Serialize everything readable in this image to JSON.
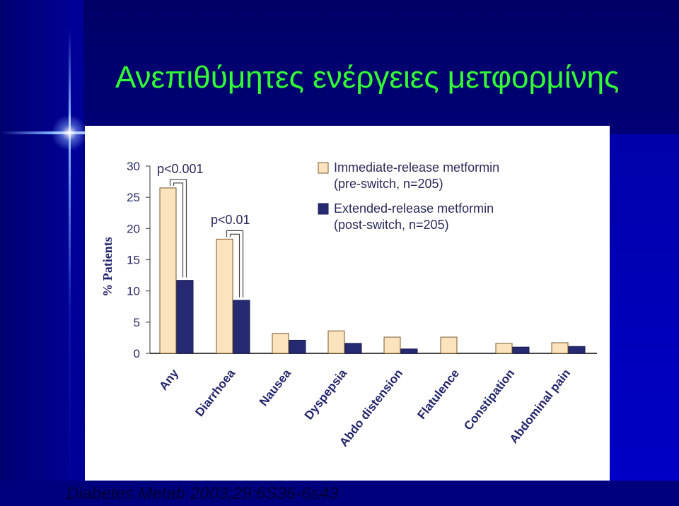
{
  "slide": {
    "title": "Ανεπιθύμητες ενέργειες μετφορμίνης",
    "citation": "Diabetes Metab 2003;29:6S36-6s43"
  },
  "colors": {
    "title": "#33ff33",
    "immediate_release": "#fbe3bd",
    "extended_release": "#262a73",
    "citation": "#000033"
  },
  "chart_data": {
    "type": "bar",
    "ylabel": "% Patients",
    "ylim": [
      0,
      30
    ],
    "yticks": [
      0,
      5,
      10,
      15,
      20,
      25,
      30
    ],
    "categories": [
      "Any",
      "Diarrhoea",
      "Nausea",
      "Dyspepsia",
      "Abdo distension",
      "Flatulence",
      "Constipation",
      "Abdominal pain"
    ],
    "series": [
      {
        "name": "Immediate-release metformin (pre-switch, n=205)",
        "values": [
          26.5,
          18.3,
          3.2,
          3.6,
          2.6,
          2.6,
          1.6,
          1.7
        ]
      },
      {
        "name": "Extended-release metformin (post-switch, n=205)",
        "values": [
          11.7,
          8.5,
          2.1,
          1.6,
          0.7,
          0,
          1.0,
          1.1
        ]
      }
    ],
    "annotations": [
      "p<0.001",
      "p<0.01"
    ],
    "legend_position": "top-right",
    "grid": false
  }
}
